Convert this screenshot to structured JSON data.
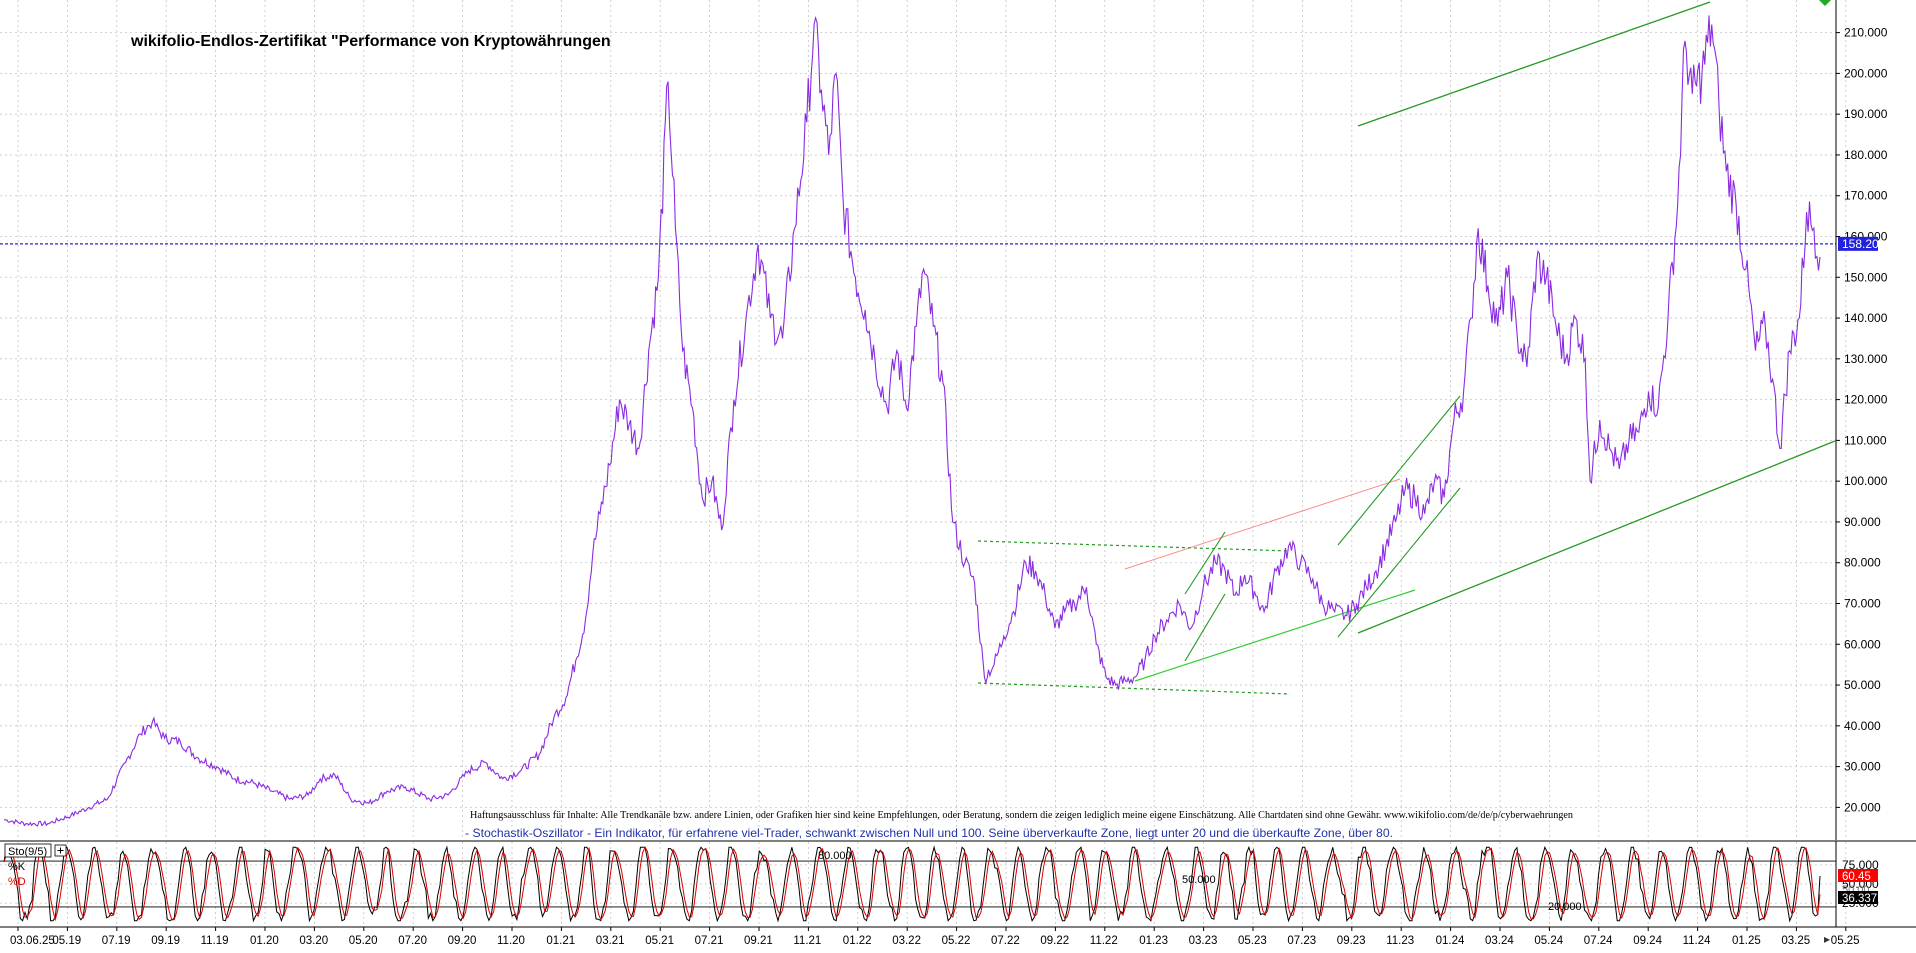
{
  "chart_data": [
    {
      "type": "line",
      "title": "wikifolio-Endlos-Zertifikat \"Performance von Kryptowährungen",
      "ylim": [
        12,
        218
      ],
      "y_ticks": [
        20.0,
        30.0,
        40.0,
        50.0,
        60.0,
        70.0,
        80.0,
        90.0,
        100.0,
        110.0,
        120.0,
        130.0,
        140.0,
        150.0,
        160.0,
        170.0,
        180.0,
        190.0,
        200.0,
        210.0
      ],
      "y_tick_labels": [
        "20.000",
        "30.000",
        "40.000",
        "50.000",
        "60.000",
        "70.000",
        "80.000",
        "90.000",
        "100.000",
        "110.000",
        "120.000",
        "130.000",
        "140.000",
        "150.000",
        "160.000",
        "170.000",
        "180.000",
        "190.000",
        "200.000",
        "210.000"
      ],
      "x_tick_labels": [
        "03.06.25",
        "05.19",
        "07.19",
        "09.19",
        "11.19",
        "01.20",
        "03.20",
        "05.20",
        "07.20",
        "09.20",
        "11.20",
        "01.21",
        "03.21",
        "05.21",
        "07.21",
        "09.21",
        "11.21",
        "01.22",
        "03.22",
        "05.22",
        "07.22",
        "09.22",
        "11.22",
        "01.23",
        "03.23",
        "05.23",
        "07.23",
        "09.23",
        "11.23",
        "01.24",
        "03.24",
        "05.24",
        "07.24",
        "09.24",
        "11.24",
        "01.25",
        "03.25",
        "05.25"
      ],
      "grid": true,
      "last_value": 158.2,
      "last_value_label": "158.20",
      "current_line_color": "#2222dd",
      "series": [
        {
          "color": "#8a2be2",
          "values": [
            [
              0,
              17
            ],
            [
              18,
              16
            ],
            [
              36,
              16
            ],
            [
              55,
              18
            ],
            [
              70,
              20
            ],
            [
              85,
              22
            ],
            [
              100,
              31
            ],
            [
              112,
              38
            ],
            [
              122,
              41
            ],
            [
              132,
              37
            ],
            [
              145,
              36
            ],
            [
              160,
              32
            ],
            [
              175,
              30
            ],
            [
              190,
              27
            ],
            [
              205,
              26
            ],
            [
              220,
              24
            ],
            [
              235,
              22
            ],
            [
              250,
              23
            ],
            [
              260,
              27
            ],
            [
              272,
              28
            ],
            [
              285,
              22
            ],
            [
              300,
              21
            ],
            [
              315,
              24
            ],
            [
              330,
              25
            ],
            [
              350,
              22
            ],
            [
              365,
              23
            ],
            [
              382,
              29
            ],
            [
              396,
              31
            ],
            [
              410,
              27
            ],
            [
              425,
              29
            ],
            [
              440,
              33
            ],
            [
              452,
              42
            ],
            [
              462,
              47
            ],
            [
              470,
              56
            ],
            [
              478,
              66
            ],
            [
              484,
              82
            ],
            [
              490,
              92
            ],
            [
              498,
              104
            ],
            [
              506,
              120
            ],
            [
              514,
              114
            ],
            [
              522,
              108
            ],
            [
              530,
              132
            ],
            [
              538,
              150
            ],
            [
              546,
              198
            ],
            [
              552,
              162
            ],
            [
              558,
              132
            ],
            [
              566,
              118
            ],
            [
              574,
              96
            ],
            [
              582,
              100
            ],
            [
              590,
              88
            ],
            [
              600,
              120
            ],
            [
              610,
              140
            ],
            [
              620,
              158
            ],
            [
              630,
              140
            ],
            [
              640,
              135
            ],
            [
              650,
              162
            ],
            [
              660,
              188
            ],
            [
              666,
              212
            ],
            [
              672,
              196
            ],
            [
              678,
              180
            ],
            [
              684,
              200
            ],
            [
              690,
              168
            ],
            [
              700,
              150
            ],
            [
              708,
              142
            ],
            [
              716,
              130
            ],
            [
              726,
              118
            ],
            [
              734,
              132
            ],
            [
              742,
              118
            ],
            [
              750,
              138
            ],
            [
              756,
              152
            ],
            [
              764,
              138
            ],
            [
              772,
              124
            ],
            [
              780,
              90
            ],
            [
              790,
              80
            ],
            [
              798,
              75
            ],
            [
              806,
              52
            ],
            [
              814,
              55
            ],
            [
              822,
              62
            ],
            [
              830,
              68
            ],
            [
              840,
              80
            ],
            [
              848,
              78
            ],
            [
              856,
              72
            ],
            [
              864,
              64
            ],
            [
              872,
              68
            ],
            [
              880,
              70
            ],
            [
              890,
              74
            ],
            [
              898,
              60
            ],
            [
              906,
              52
            ],
            [
              914,
              50
            ],
            [
              922,
              51
            ],
            [
              930,
              52
            ],
            [
              938,
              56
            ],
            [
              946,
              62
            ],
            [
              956,
              66
            ],
            [
              966,
              70
            ],
            [
              976,
              64
            ],
            [
              986,
              74
            ],
            [
              996,
              80
            ],
            [
              1004,
              78
            ],
            [
              1012,
              72
            ],
            [
              1020,
              77
            ],
            [
              1028,
              73
            ],
            [
              1036,
              68
            ],
            [
              1046,
              78
            ],
            [
              1056,
              84
            ],
            [
              1066,
              80
            ],
            [
              1076,
              76
            ],
            [
              1084,
              70
            ],
            [
              1094,
              68
            ],
            [
              1104,
              67
            ],
            [
              1112,
              70
            ],
            [
              1120,
              74
            ],
            [
              1128,
              78
            ],
            [
              1136,
              84
            ],
            [
              1144,
              90
            ],
            [
              1152,
              98
            ],
            [
              1160,
              96
            ],
            [
              1168,
              92
            ],
            [
              1176,
              100
            ],
            [
              1184,
              96
            ],
            [
              1192,
              115
            ],
            [
              1200,
              122
            ],
            [
              1206,
              140
            ],
            [
              1212,
              162
            ],
            [
              1220,
              148
            ],
            [
              1228,
              138
            ],
            [
              1236,
              150
            ],
            [
              1244,
              136
            ],
            [
              1252,
              128
            ],
            [
              1260,
              154
            ],
            [
              1268,
              150
            ],
            [
              1276,
              138
            ],
            [
              1284,
              130
            ],
            [
              1292,
              140
            ],
            [
              1300,
              130
            ],
            [
              1304,
              100
            ],
            [
              1312,
              115
            ],
            [
              1320,
              108
            ],
            [
              1328,
              103
            ],
            [
              1336,
              110
            ],
            [
              1344,
              112
            ],
            [
              1352,
              122
            ],
            [
              1360,
              118
            ],
            [
              1368,
              140
            ],
            [
              1376,
              168
            ],
            [
              1382,
              208
            ],
            [
              1388,
              195
            ],
            [
              1396,
              200
            ],
            [
              1404,
              212
            ],
            [
              1410,
              192
            ],
            [
              1416,
              176
            ],
            [
              1424,
              168
            ],
            [
              1432,
              152
            ],
            [
              1440,
              132
            ],
            [
              1448,
              138
            ],
            [
              1454,
              125
            ],
            [
              1460,
              108
            ],
            [
              1468,
              132
            ],
            [
              1476,
              140
            ],
            [
              1482,
              166
            ],
            [
              1488,
              162
            ],
            [
              1493,
              155
            ]
          ]
        }
      ]
    },
    {
      "type": "line",
      "title": "Sto(9/5)",
      "ylim": [
        -5,
        105
      ],
      "y_ticks": [
        25.0,
        50.0,
        75.0
      ],
      "y_tick_labels": [
        "25.000",
        "50.000",
        "75.000"
      ],
      "horizontal_lines": [
        20,
        80
      ],
      "series": [
        {
          "name": "%K",
          "color": "#000000"
        },
        {
          "name": "%D",
          "color": "#dd0000"
        }
      ],
      "last_values": {
        "K": 60.45,
        "D": 36.337
      },
      "last_value_labels": {
        "K": "60.45",
        "D": "36.337"
      }
    }
  ],
  "disclaimer": "Haftungsausschluss für Inhalte: Alle Trendkanäle bzw. andere Linien, oder Grafiken hier sind keine Empfehlungen, oder Beratung, sondern die zeigen lediglich meine eigene Einschätzung. Alle Chartdaten sind ohne Gewähr. www.wikifolio.com/de/de/p/cyberwaehrungen",
  "indicator_note": "- Stochastik-Oszillator - Ein Indikator, für erfahrene viel-Trader, schwankt zwischen Null und 100. Seine überverkaufte Zone, liegt unter 20 und die überkaufte Zone, über 80.",
  "osc_panel_label": "Sto(9/5)",
  "osc_k_label": "%K",
  "osc_d_label": "%D",
  "osc_inline_labels": [
    "80.000",
    "50.000",
    "20.000"
  ],
  "osc_axis_overlay": "50.00",
  "colors": {
    "price": "#8a2be2",
    "grid": "#bbbbbb",
    "trend_green": "#229922",
    "trend_lightgreen": "#33cc33",
    "trend_red": "#ff8888",
    "k_line": "#000000",
    "d_line": "#dd0000",
    "price_badge": "#2222dd",
    "k_badge": "#ff0000",
    "d_badge": "#000000"
  },
  "icons": {
    "panel_toggle": "plus-box-icon",
    "corner_marker": "green-triangle-icon",
    "scroll_arrow": "right-arrow-icon"
  }
}
